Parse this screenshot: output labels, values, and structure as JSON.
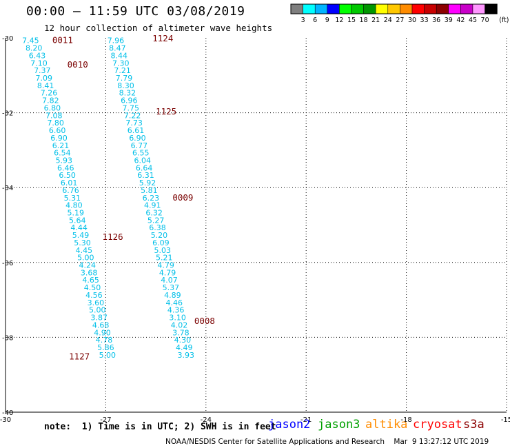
{
  "header": {
    "title": "00:00 – 11:59 UTC 03/08/2019",
    "subtitle": "12 hour collection of altimeter wave heights"
  },
  "colorbar": {
    "unit": "(ft)",
    "labels": [
      "3",
      "6",
      "9",
      "12",
      "15",
      "18",
      "21",
      "24",
      "27",
      "30",
      "33",
      "36",
      "39",
      "42",
      "45",
      "70"
    ],
    "colors": [
      "#7f7f7f",
      "#00ffff",
      "#00b4ff",
      "#0000ff",
      "#00ff00",
      "#00c800",
      "#009600",
      "#ffff00",
      "#ffc800",
      "#ff8c00",
      "#ff0000",
      "#c80000",
      "#8c0000",
      "#ff00ff",
      "#c800c8",
      "#ff96ff",
      "#000000"
    ]
  },
  "map": {
    "x_ticks": [
      "-30",
      "-27",
      "-24",
      "-21",
      "-18",
      "-15"
    ],
    "y_ticks": [
      "-30",
      "-32",
      "-34",
      "-36",
      "-38",
      "-40"
    ],
    "lon_range": [
      -30,
      -15
    ],
    "lat_range": [
      -40,
      -30
    ],
    "pass_color": "#00bfe8",
    "time_color": "#7a0000",
    "passes": [
      {
        "points": [
          {
            "lon": -29.25,
            "lat": -30.05,
            "v": "7.45"
          },
          {
            "lon": -29.15,
            "lat": -30.25,
            "v": "8.20"
          },
          {
            "lon": -29.05,
            "lat": -30.45,
            "v": "6.43"
          },
          {
            "lon": -29.0,
            "lat": -30.65,
            "v": "7.10"
          },
          {
            "lon": -28.9,
            "lat": -30.85,
            "v": "7.37"
          },
          {
            "lon": -28.85,
            "lat": -31.05,
            "v": "7.09"
          },
          {
            "lon": -28.8,
            "lat": -31.25,
            "v": "8.41"
          },
          {
            "lon": -28.7,
            "lat": -31.45,
            "v": "7.26"
          },
          {
            "lon": -28.65,
            "lat": -31.65,
            "v": "7.82"
          },
          {
            "lon": -28.6,
            "lat": -31.85,
            "v": "6.80"
          },
          {
            "lon": -28.55,
            "lat": -32.05,
            "v": "7.08"
          },
          {
            "lon": -28.5,
            "lat": -32.25,
            "v": "7.80"
          },
          {
            "lon": -28.45,
            "lat": -32.45,
            "v": "6.60"
          },
          {
            "lon": -28.4,
            "lat": -32.65,
            "v": "6.90"
          },
          {
            "lon": -28.35,
            "lat": -32.85,
            "v": "6.21"
          },
          {
            "lon": -28.3,
            "lat": -33.05,
            "v": "6.54"
          },
          {
            "lon": -28.25,
            "lat": -33.25,
            "v": "5.93"
          },
          {
            "lon": -28.2,
            "lat": -33.45,
            "v": "6.46"
          },
          {
            "lon": -28.15,
            "lat": -33.65,
            "v": "6.50"
          },
          {
            "lon": -28.1,
            "lat": -33.85,
            "v": "6.01"
          },
          {
            "lon": -28.05,
            "lat": -34.05,
            "v": "6.76"
          },
          {
            "lon": -28.0,
            "lat": -34.25,
            "v": "5.31"
          },
          {
            "lon": -27.95,
            "lat": -34.45,
            "v": "4.80"
          },
          {
            "lon": -27.9,
            "lat": -34.65,
            "v": "5.19"
          },
          {
            "lon": -27.85,
            "lat": -34.85,
            "v": "5.64"
          },
          {
            "lon": -27.8,
            "lat": -35.05,
            "v": "4.44"
          },
          {
            "lon": -27.75,
            "lat": -35.25,
            "v": "5.49"
          },
          {
            "lon": -27.7,
            "lat": -35.45,
            "v": "5.30"
          },
          {
            "lon": -27.65,
            "lat": -35.65,
            "v": "4.45"
          },
          {
            "lon": -27.6,
            "lat": -35.85,
            "v": "5.00"
          },
          {
            "lon": -27.55,
            "lat": -36.05,
            "v": "4.24"
          },
          {
            "lon": -27.5,
            "lat": -36.25,
            "v": "3.68"
          },
          {
            "lon": -27.45,
            "lat": -36.45,
            "v": "4.65"
          },
          {
            "lon": -27.4,
            "lat": -36.65,
            "v": "4.50"
          },
          {
            "lon": -27.35,
            "lat": -36.85,
            "v": "4.56"
          },
          {
            "lon": -27.3,
            "lat": -37.05,
            "v": "3.60"
          },
          {
            "lon": -27.25,
            "lat": -37.25,
            "v": "5.00"
          },
          {
            "lon": -27.2,
            "lat": -37.45,
            "v": "3.87"
          },
          {
            "lon": -27.15,
            "lat": -37.65,
            "v": "4.68"
          },
          {
            "lon": -27.1,
            "lat": -37.85,
            "v": "4.90"
          },
          {
            "lon": -27.05,
            "lat": -38.05,
            "v": "4.78"
          },
          {
            "lon": -27.0,
            "lat": -38.25,
            "v": "5.86"
          },
          {
            "lon": -26.95,
            "lat": -38.45,
            "v": "5.00"
          }
        ]
      },
      {
        "points": [
          {
            "lon": -26.7,
            "lat": -30.05,
            "v": "7.96"
          },
          {
            "lon": -26.65,
            "lat": -30.25,
            "v": "8.47"
          },
          {
            "lon": -26.6,
            "lat": -30.45,
            "v": "8.44"
          },
          {
            "lon": -26.55,
            "lat": -30.65,
            "v": "7.30"
          },
          {
            "lon": -26.5,
            "lat": -30.85,
            "v": "7.21"
          },
          {
            "lon": -26.45,
            "lat": -31.05,
            "v": "7.79"
          },
          {
            "lon": -26.4,
            "lat": -31.25,
            "v": "8.30"
          },
          {
            "lon": -26.35,
            "lat": -31.45,
            "v": "8.32"
          },
          {
            "lon": -26.3,
            "lat": -31.65,
            "v": "6.96"
          },
          {
            "lon": -26.25,
            "lat": -31.85,
            "v": "7.75"
          },
          {
            "lon": -26.2,
            "lat": -32.05,
            "v": "7.22"
          },
          {
            "lon": -26.15,
            "lat": -32.25,
            "v": "7.73"
          },
          {
            "lon": -26.1,
            "lat": -32.45,
            "v": "6.61"
          },
          {
            "lon": -26.05,
            "lat": -32.65,
            "v": "6.90"
          },
          {
            "lon": -26.0,
            "lat": -32.85,
            "v": "6.77"
          },
          {
            "lon": -25.95,
            "lat": -33.05,
            "v": "6.55"
          },
          {
            "lon": -25.9,
            "lat": -33.25,
            "v": "6.04"
          },
          {
            "lon": -25.85,
            "lat": -33.45,
            "v": "6.64"
          },
          {
            "lon": -25.8,
            "lat": -33.65,
            "v": "6.31"
          },
          {
            "lon": -25.75,
            "lat": -33.85,
            "v": "5.92"
          },
          {
            "lon": -25.7,
            "lat": -34.05,
            "v": "5.81"
          },
          {
            "lon": -25.65,
            "lat": -34.25,
            "v": "6.23"
          },
          {
            "lon": -25.6,
            "lat": -34.45,
            "v": "4.91"
          },
          {
            "lon": -25.55,
            "lat": -34.65,
            "v": "6.32"
          },
          {
            "lon": -25.5,
            "lat": -34.85,
            "v": "5.27"
          },
          {
            "lon": -25.45,
            "lat": -35.05,
            "v": "6.38"
          },
          {
            "lon": -25.4,
            "lat": -35.25,
            "v": "5.20"
          },
          {
            "lon": -25.35,
            "lat": -35.45,
            "v": "6.09"
          },
          {
            "lon": -25.3,
            "lat": -35.65,
            "v": "5.03"
          },
          {
            "lon": -25.25,
            "lat": -35.85,
            "v": "5.21"
          },
          {
            "lon": -25.2,
            "lat": -36.05,
            "v": "4.79"
          },
          {
            "lon": -25.15,
            "lat": -36.25,
            "v": "4.79"
          },
          {
            "lon": -25.1,
            "lat": -36.45,
            "v": "4.07"
          },
          {
            "lon": -25.05,
            "lat": -36.65,
            "v": "5.37"
          },
          {
            "lon": -25.0,
            "lat": -36.85,
            "v": "4.89"
          },
          {
            "lon": -24.95,
            "lat": -37.05,
            "v": "4.46"
          },
          {
            "lon": -24.9,
            "lat": -37.25,
            "v": "4.36"
          },
          {
            "lon": -24.85,
            "lat": -37.45,
            "v": "3.10"
          },
          {
            "lon": -24.8,
            "lat": -37.65,
            "v": "4.02"
          },
          {
            "lon": -24.75,
            "lat": -37.85,
            "v": "3.78"
          },
          {
            "lon": -24.7,
            "lat": -38.05,
            "v": "4.30"
          },
          {
            "lon": -24.65,
            "lat": -38.25,
            "v": "4.49"
          },
          {
            "lon": -24.6,
            "lat": -38.45,
            "v": "3.93"
          }
        ]
      }
    ],
    "time_labels": [
      {
        "t": "0011",
        "lon": -28.6,
        "lat": -30.05
      },
      {
        "t": "1124",
        "lon": -25.6,
        "lat": -30.0
      },
      {
        "t": "0010",
        "lon": -28.15,
        "lat": -30.7
      },
      {
        "t": "1125",
        "lon": -25.5,
        "lat": -31.95
      },
      {
        "t": "0009",
        "lon": -25.0,
        "lat": -34.25
      },
      {
        "t": "1126",
        "lon": -27.1,
        "lat": -35.3
      },
      {
        "t": "0008",
        "lon": -24.35,
        "lat": -37.55
      },
      {
        "t": "1127",
        "lon": -28.1,
        "lat": -38.5
      }
    ]
  },
  "note": "note:  1) Time is in UTC; 2) SWH is in feet",
  "satellites": [
    {
      "name": "jason2",
      "color": "#0000ff"
    },
    {
      "name": "jason3",
      "color": "#00a000"
    },
    {
      "name": "altika",
      "color": "#ff8c00"
    },
    {
      "name": "cryosat",
      "color": "#ff0000"
    },
    {
      "name": "s3a",
      "color": "#8c0000"
    }
  ],
  "credit": "NOAA/NESDIS Center for Satellite Applications and Research    Mar  9 13:27:12 UTC 2019"
}
